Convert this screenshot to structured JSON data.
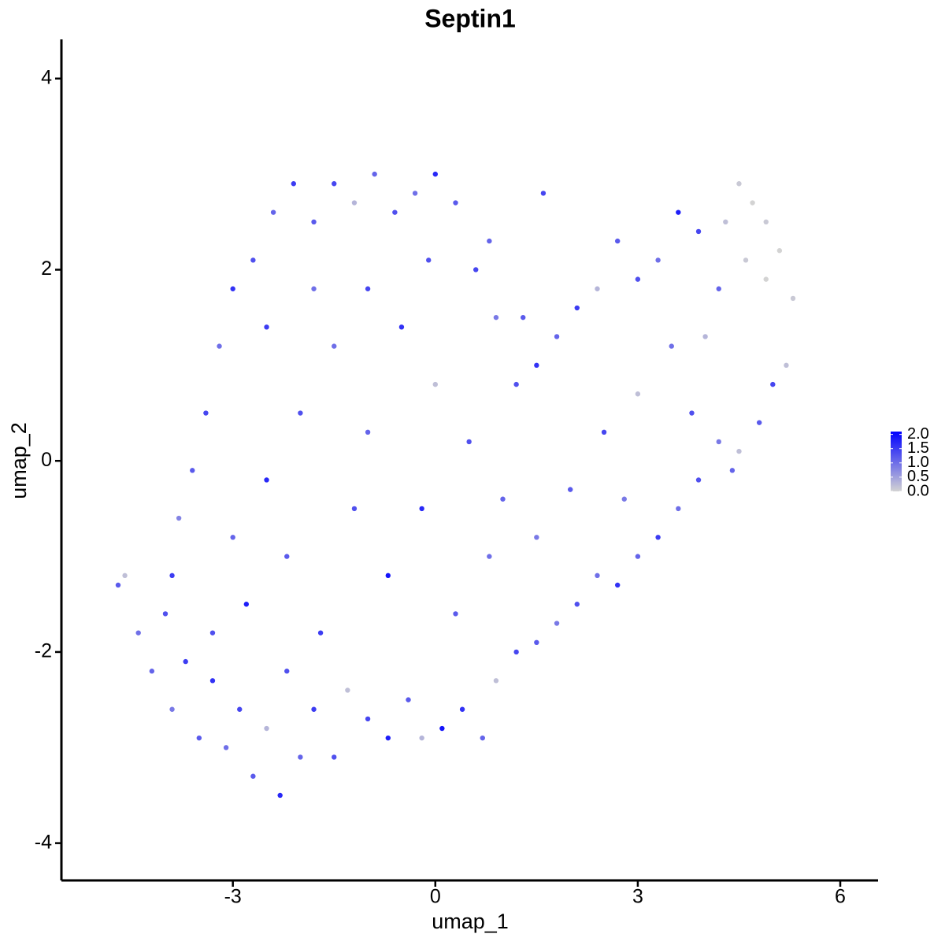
{
  "chart_data": {
    "type": "scatter",
    "title": "Septin1",
    "x_label": "umap_1",
    "y_label": "umap_2",
    "xlim": [
      -5.54,
      6.56
    ],
    "ylim": [
      -4.39,
      4.41
    ],
    "xticks": [
      -3,
      0,
      3,
      6
    ],
    "yticks": [
      -4,
      -2,
      0,
      2,
      4
    ],
    "colorscale": [
      "#d3d3d3",
      "#0000ff"
    ],
    "clim": [
      0,
      2.1
    ],
    "colorbar_ticks": [
      {
        "value": 0,
        "label": "0.0"
      },
      {
        "value": 0.5,
        "label": "0.5"
      },
      {
        "value": 1,
        "label": "1.0"
      },
      {
        "value": 1.5,
        "label": "1.5"
      },
      {
        "value": 2,
        "label": "2.0"
      }
    ],
    "x": [
      -4.7,
      -4.6,
      -4.2,
      -4.0,
      -3.9,
      -3.7,
      -3.5,
      -3.3,
      -3.1,
      -2.9,
      -2.7,
      -2.5,
      -2.3,
      -2.2,
      -2.0,
      -1.8,
      -1.5,
      -1.3,
      -1.0,
      -0.7,
      -0.4,
      -0.2,
      0.1,
      0.4,
      0.7,
      0.9,
      1.2,
      1.5,
      1.8,
      2.1,
      2.4,
      2.7,
      3.0,
      3.3,
      3.6,
      3.9,
      4.2,
      4.5,
      4.8,
      5.0,
      5.2,
      5.3,
      5.1,
      4.9,
      4.7,
      4.5,
      4.3,
      4.6,
      4.9,
      4.2,
      3.9,
      3.6,
      3.3,
      3.0,
      2.7,
      2.4,
      2.1,
      1.8,
      1.5,
      1.2,
      0.9,
      0.6,
      0.3,
      0.0,
      -0.3,
      -0.6,
      -0.9,
      -1.2,
      -1.5,
      -1.8,
      -2.1,
      -2.4,
      -2.7,
      -3.0,
      -3.2,
      -3.4,
      -3.6,
      -3.8,
      -3.9,
      -3.0,
      -2.5,
      -2.0,
      -1.5,
      -1.0,
      -0.5,
      0.0,
      0.5,
      1.0,
      1.5,
      2.0,
      2.5,
      3.0,
      3.5,
      4.0,
      -2.8,
      -2.2,
      -1.7,
      -1.2,
      -0.7,
      -0.2,
      0.3,
      0.8,
      -1.0,
      -2.5,
      -3.3,
      -4.4,
      1.6,
      0.8,
      -0.1,
      -1.8,
      4.4,
      3.8,
      2.8,
      1.3
    ],
    "y": [
      -1.3,
      -1.2,
      -2.2,
      -1.6,
      -2.6,
      -2.1,
      -2.9,
      -2.3,
      -3.0,
      -2.6,
      -3.3,
      -2.8,
      -3.5,
      -2.2,
      -3.1,
      -2.6,
      -3.1,
      -2.4,
      -2.7,
      -2.9,
      -2.5,
      -2.9,
      -2.8,
      -2.6,
      -2.9,
      -2.3,
      -2.0,
      -1.9,
      -1.7,
      -1.5,
      -1.2,
      -1.3,
      -1.0,
      -0.8,
      -0.5,
      -0.2,
      0.2,
      0.1,
      0.4,
      0.8,
      1.0,
      1.7,
      2.2,
      2.5,
      2.7,
      2.9,
      2.5,
      2.1,
      1.9,
      1.8,
      2.4,
      2.6,
      2.1,
      1.9,
      2.3,
      1.8,
      1.6,
      1.3,
      1.0,
      0.8,
      1.5,
      2.0,
      2.7,
      3.0,
      2.8,
      2.6,
      3.0,
      2.7,
      2.9,
      2.5,
      2.9,
      2.6,
      2.1,
      1.8,
      1.2,
      0.5,
      -0.1,
      -0.6,
      -1.2,
      -0.8,
      -0.2,
      0.5,
      1.2,
      1.8,
      1.4,
      0.8,
      0.2,
      -0.4,
      -0.8,
      -0.3,
      0.3,
      0.7,
      1.2,
      1.3,
      -1.5,
      -1.0,
      -1.8,
      -0.5,
      -1.2,
      -0.5,
      -1.6,
      -1.0,
      0.3,
      1.4,
      -1.8,
      -1.8,
      2.8,
      2.3,
      2.1,
      1.8,
      -0.1,
      0.5,
      -0.4,
      1.5
    ],
    "values": [
      1.2,
      0.2,
      1.1,
      1.3,
      0.9,
      1.5,
      1.2,
      1.6,
      1.0,
      1.4,
      1.2,
      0.3,
      1.7,
      1.3,
      1.1,
      1.5,
      1.3,
      0.2,
      1.4,
      1.8,
      1.2,
      0.3,
      1.9,
      1.6,
      1.1,
      0.2,
      1.4,
      1.2,
      0.9,
      1.3,
      1.0,
      1.6,
      1.1,
      1.5,
      1.0,
      1.3,
      0.9,
      0.2,
      1.2,
      1.4,
      0.2,
      0.1,
      0.0,
      0.1,
      0.0,
      0.1,
      0.2,
      0.1,
      0.0,
      1.1,
      1.4,
      1.8,
      1.0,
      1.3,
      1.2,
      0.3,
      1.5,
      1.1,
      1.6,
      1.3,
      0.9,
      1.4,
      1.2,
      1.7,
      1.0,
      1.3,
      1.1,
      0.3,
      1.4,
      1.2,
      1.5,
      1.1,
      1.3,
      1.6,
      1.0,
      1.4,
      1.2,
      0.8,
      1.5,
      1.1,
      1.7,
      1.3,
      1.0,
      1.4,
      1.6,
      0.2,
      1.3,
      1.1,
      0.9,
      1.2,
      1.4,
      0.2,
      1.0,
      0.3,
      1.8,
      1.2,
      1.5,
      1.3,
      1.9,
      1.7,
      1.2,
      1.0,
      1.1,
      1.5,
      1.3,
      1.0,
      1.4,
      1.1,
      1.3,
      1.0,
      1.1,
      1.3,
      0.9,
      1.2
    ]
  }
}
